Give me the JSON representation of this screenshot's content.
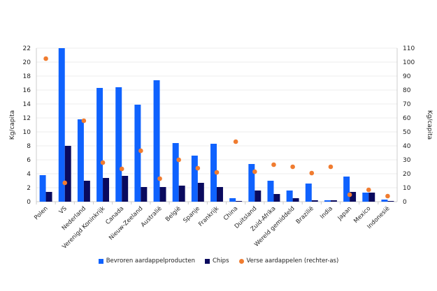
{
  "chart_data": {
    "type": "bar",
    "categories": [
      "Polen",
      "VS",
      "Nederland",
      "Verenigd Koninkrijk",
      "Canada",
      "Nieuw-Zeeland",
      "Australië",
      "België",
      "Spanje",
      "Frankrijk",
      "China",
      "Duitsland",
      "Zuid-Afrika",
      "Wereld gemiddeld",
      "Brazilië",
      "India",
      "Japan",
      "Mexico",
      "Indonesië"
    ],
    "series": [
      {
        "name": "Bevroren aardappelproducten",
        "axis": "left",
        "type": "bar",
        "color": "#0f62fe",
        "values": [
          3.8,
          22,
          11.8,
          16.3,
          16.4,
          13.9,
          17.4,
          8.4,
          6.6,
          8.3,
          0.5,
          5.4,
          3.0,
          1.6,
          2.6,
          0.2,
          3.6,
          1.3,
          0.3
        ]
      },
      {
        "name": "Chips",
        "axis": "left",
        "type": "bar",
        "color": "#0a0a5e",
        "values": [
          1.4,
          8.0,
          3.0,
          3.4,
          3.7,
          2.1,
          2.1,
          2.3,
          2.7,
          2.1,
          0.1,
          1.6,
          1.1,
          0.5,
          0.2,
          0.2,
          1.4,
          1.3,
          0.1
        ]
      },
      {
        "name": "Verse aardappelen (rechter-as)",
        "axis": "right",
        "type": "scatter",
        "color": "#f07c30",
        "values": [
          102.5,
          13.5,
          58,
          28,
          23.5,
          36.5,
          16.5,
          30,
          24,
          21,
          43,
          21.5,
          26.5,
          25,
          20.5,
          25,
          5,
          8.5,
          4
        ]
      }
    ],
    "ylabel": "Kg/capita",
    "ylabel_right": "Kg/capita",
    "ylim": [
      0,
      22
    ],
    "ylim_right": [
      0,
      110
    ],
    "yticks": [
      0,
      2,
      4,
      6,
      8,
      10,
      12,
      14,
      16,
      18,
      20,
      22
    ],
    "yticks_right": [
      0,
      10,
      20,
      30,
      40,
      50,
      60,
      70,
      80,
      90,
      100,
      110
    ],
    "grid": true,
    "legend": "bottom"
  }
}
